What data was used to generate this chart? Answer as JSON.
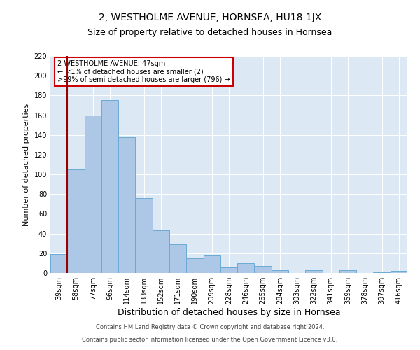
{
  "title": "2, WESTHOLME AVENUE, HORNSEA, HU18 1JX",
  "subtitle": "Size of property relative to detached houses in Hornsea",
  "xlabel": "Distribution of detached houses by size in Hornsea",
  "ylabel": "Number of detached properties",
  "categories": [
    "39sqm",
    "58sqm",
    "77sqm",
    "96sqm",
    "114sqm",
    "133sqm",
    "152sqm",
    "171sqm",
    "190sqm",
    "209sqm",
    "228sqm",
    "246sqm",
    "265sqm",
    "284sqm",
    "303sqm",
    "322sqm",
    "341sqm",
    "359sqm",
    "378sqm",
    "397sqm",
    "416sqm"
  ],
  "values": [
    19,
    105,
    160,
    175,
    138,
    76,
    43,
    29,
    15,
    18,
    6,
    10,
    7,
    3,
    0,
    3,
    0,
    3,
    0,
    1,
    2
  ],
  "bar_color": "#adc8e6",
  "bar_edge_color": "#6aaad4",
  "vline_color": "#990000",
  "ylim": [
    0,
    220
  ],
  "yticks": [
    0,
    20,
    40,
    60,
    80,
    100,
    120,
    140,
    160,
    180,
    200,
    220
  ],
  "annotation_text": "2 WESTHOLME AVENUE: 47sqm\n← <1% of detached houses are smaller (2)\n>99% of semi-detached houses are larger (796) →",
  "annotation_box_color": "#ffffff",
  "annotation_box_edgecolor": "#cc0000",
  "footer_line1": "Contains HM Land Registry data © Crown copyright and database right 2024.",
  "footer_line2": "Contains public sector information licensed under the Open Government Licence v3.0.",
  "background_color": "#dce9f5",
  "title_fontsize": 10,
  "subtitle_fontsize": 9,
  "ylabel_fontsize": 8,
  "xlabel_fontsize": 9,
  "tick_fontsize": 7,
  "annot_fontsize": 7,
  "footer_fontsize": 6
}
